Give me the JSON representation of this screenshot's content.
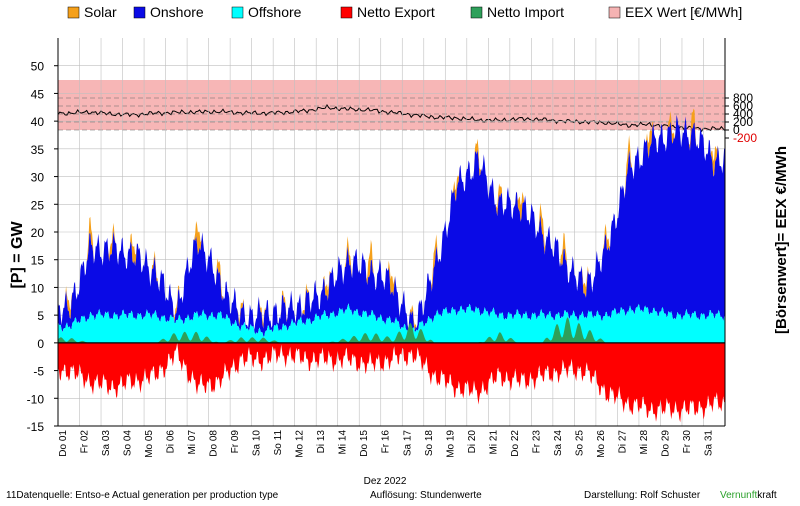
{
  "chart_data": {
    "type": "area",
    "legend": [
      {
        "label": "Solar",
        "color": "#f5a01a"
      },
      {
        "label": "Onshore",
        "color": "#0a0ae6"
      },
      {
        "label": "Offshore",
        "color": "#00ffff"
      },
      {
        "label": "Netto Export",
        "color": "#ff0000"
      },
      {
        "label": "Netto Import",
        "color": "#2ea05a"
      },
      {
        "label": "EEX Wert [€/MWh]",
        "color": "#f5b3b3"
      }
    ],
    "ylabel_left": "[P] = GW",
    "ylabel_right": "[Börsenwert]= EEX  €/MWh",
    "xlabel": "Dez 2022",
    "ylim_left": [
      -15,
      55
    ],
    "yticks_left": [
      50,
      45,
      40,
      35,
      30,
      25,
      20,
      15,
      10,
      5,
      0,
      -5,
      -10,
      -15
    ],
    "yticks_right": [
      {
        "label": "800",
        "value": 800
      },
      {
        "label": "600",
        "value": 600
      },
      {
        "label": "400",
        "value": 400
      },
      {
        "label": "200",
        "value": 200
      },
      {
        "label": "0",
        "value": 0
      },
      {
        "label": "-200",
        "value": -200,
        "color": "#e00000"
      }
    ],
    "x_days": [
      "Do 01",
      "Fr 02",
      "Sa 03",
      "So 04",
      "Mo 05",
      "Di 06",
      "Mi 07",
      "Do 08",
      "Fr 09",
      "Sa 10",
      "So 11",
      "Mo 12",
      "Di 13",
      "Mi 14",
      "Do 15",
      "Fr 16",
      "Sa 17",
      "So 18",
      "Mo 19",
      "Di 20",
      "Mi 21",
      "Do 22",
      "Fr 23",
      "Sa 24",
      "So 25",
      "Mo 26",
      "Di 27",
      "Mi 28",
      "Do 29",
      "Fr 30",
      "Sa 31"
    ],
    "grid": true,
    "legend_position": "top",
    "series_daily": {
      "onshore": [
        3,
        12,
        12,
        11,
        8,
        2,
        14,
        6,
        2,
        3,
        3,
        3,
        5,
        9,
        8,
        7,
        1,
        8,
        22,
        27,
        20,
        20,
        15,
        10,
        5,
        12,
        25,
        30,
        33,
        33,
        28
      ],
      "offshore": [
        3,
        5,
        5,
        5,
        5,
        4,
        5,
        5,
        3,
        2,
        3,
        4,
        5,
        6,
        5,
        4,
        2,
        5,
        6,
        6,
        5,
        5,
        5,
        5,
        5,
        5,
        6,
        6,
        5,
        5,
        5
      ],
      "solar_peak": [
        2,
        3,
        2,
        3,
        1,
        1,
        4,
        2,
        1,
        1,
        1,
        1,
        2,
        2,
        4,
        3,
        1,
        3,
        2,
        2,
        2,
        3,
        3,
        3,
        2,
        2,
        3,
        3,
        2,
        3,
        3
      ],
      "netto_export": [
        -5,
        -7,
        -8,
        -7,
        -6,
        -2,
        -8,
        -7,
        -3,
        -3,
        -2,
        -3,
        -3,
        -3,
        -4,
        -3,
        -2,
        -6,
        -8,
        -9,
        -6,
        -7,
        -6,
        -5,
        -5,
        -9,
        -11,
        -12,
        -12,
        -12,
        -11
      ],
      "netto_import_peak": [
        1,
        0,
        0,
        0,
        0,
        2,
        2,
        0,
        1,
        1,
        0,
        0,
        0,
        1,
        2,
        1,
        4,
        0,
        0,
        0,
        2,
        0,
        0,
        5,
        3,
        0,
        0,
        0,
        0,
        0,
        0
      ],
      "eex": [
        420,
        450,
        400,
        380,
        420,
        440,
        450,
        460,
        430,
        420,
        440,
        480,
        560,
        520,
        500,
        440,
        380,
        320,
        300,
        250,
        240,
        280,
        260,
        220,
        200,
        180,
        120,
        140,
        80,
        40,
        30
      ]
    }
  },
  "footer": {
    "source": "11Datenquelle: Entso-e  Actual generation per production type",
    "resolution": "Auflösung: Stundenwerte",
    "author": "Darstellung:  Rolf Schuster",
    "brand_a": "Vernunft",
    "brand_b": "kraft"
  }
}
